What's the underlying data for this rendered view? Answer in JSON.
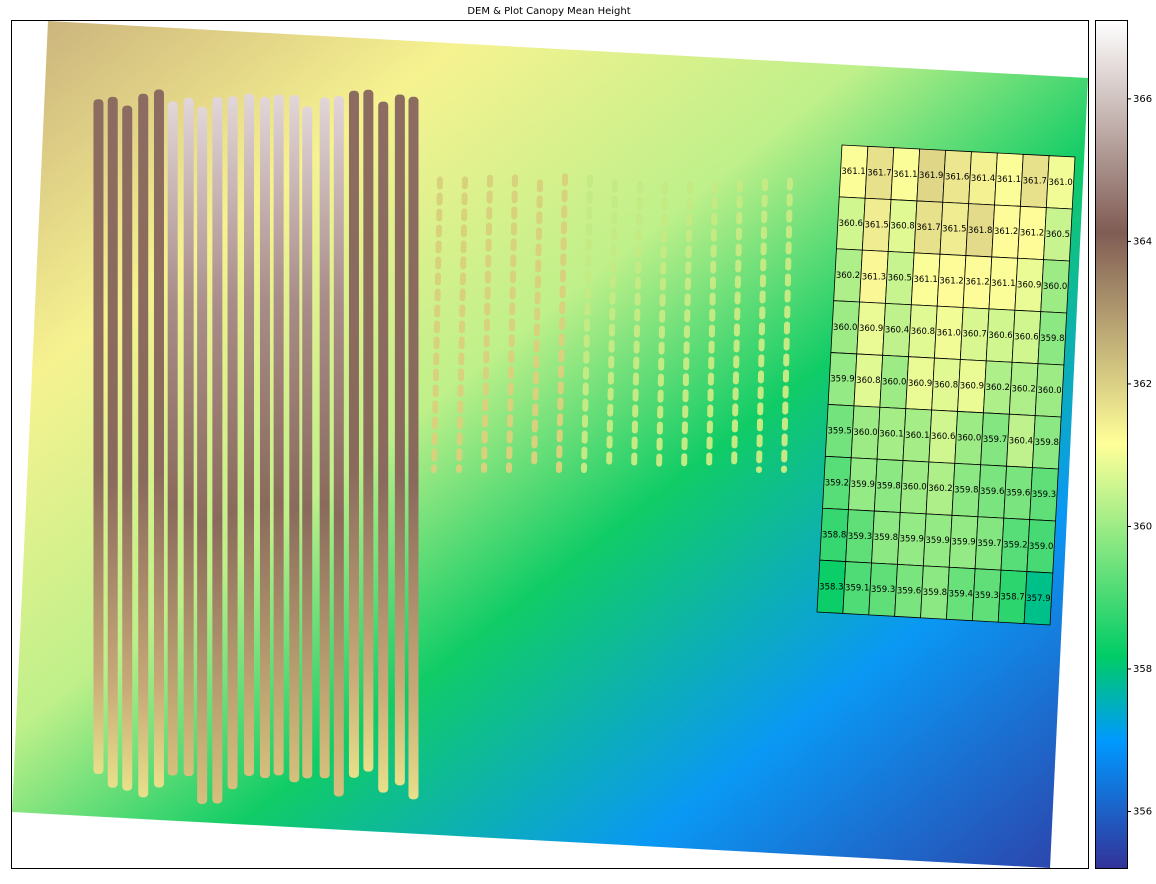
{
  "chart_data": {
    "type": "heatmap",
    "title": "DEM & Plot Canopy Mean Height",
    "colormap": "terrain",
    "clim": [
      355.2,
      367.1
    ],
    "colorbar_ticks": [
      356,
      358,
      360,
      362,
      364,
      366
    ],
    "values": [
      [
        361.1,
        361.7,
        361.1,
        361.9,
        361.6,
        361.4,
        361.1,
        361.7,
        361.0
      ],
      [
        360.6,
        361.5,
        360.8,
        361.7,
        361.5,
        361.8,
        361.2,
        361.2,
        360.5
      ],
      [
        360.2,
        361.3,
        360.5,
        361.1,
        361.2,
        361.2,
        361.1,
        360.9,
        360.0
      ],
      [
        360.0,
        360.9,
        360.4,
        360.8,
        361.0,
        360.7,
        360.6,
        360.6,
        359.8
      ],
      [
        359.9,
        360.8,
        360.0,
        360.9,
        360.8,
        360.9,
        360.2,
        360.2,
        360.0
      ],
      [
        359.5,
        360.0,
        360.1,
        360.1,
        360.6,
        360.0,
        359.7,
        360.4,
        359.8
      ],
      [
        359.2,
        359.9,
        359.8,
        360.0,
        360.2,
        359.8,
        359.6,
        359.6,
        359.3
      ],
      [
        358.8,
        359.3,
        359.8,
        359.9,
        359.9,
        359.9,
        359.7,
        359.2,
        359.0
      ],
      [
        358.3,
        359.1,
        359.3,
        359.6,
        359.8,
        359.4,
        359.3,
        358.7,
        357.9
      ]
    ],
    "value_labels": [
      [
        "361.1",
        "361.7",
        "361.1",
        "361.9",
        "361.6",
        "361.4",
        "361.1",
        "361.7",
        "361.0"
      ],
      [
        "360.6",
        "361.5",
        "360.8",
        "361.7",
        "361.5",
        "361.8",
        "361.2",
        "361.2",
        "360.5"
      ],
      [
        "360.2",
        "361.3",
        "360.5",
        "361.1",
        "361.2",
        "361.2",
        "361.1",
        "360.9",
        "360.0"
      ],
      [
        "360.0",
        "360.9",
        "360.4",
        "360.8",
        "361.0",
        "360.7",
        "360.6",
        "360.6",
        "359.8"
      ],
      [
        "359.9",
        "360.8",
        "360.0",
        "360.9",
        "360.8",
        "360.9",
        "360.2",
        "360.2",
        "360.0"
      ],
      [
        "359.5",
        "360.0",
        "360.1",
        "360.1",
        "360.6",
        "360.0",
        "359.7",
        "360.4",
        "359.8"
      ],
      [
        "359.2",
        "359.9",
        "359.8",
        "360.0",
        "360.2",
        "359.8",
        "359.6",
        "359.6",
        "359.3"
      ],
      [
        "358.8",
        "359.3",
        "359.8",
        "359.9",
        "359.9",
        "359.9",
        "359.7",
        "359.2",
        "359.0"
      ],
      [
        "358.3",
        "359.1",
        "359.3",
        "359.6",
        "359.8",
        "359.4",
        "359.3",
        "358.7",
        "357.9"
      ]
    ]
  }
}
